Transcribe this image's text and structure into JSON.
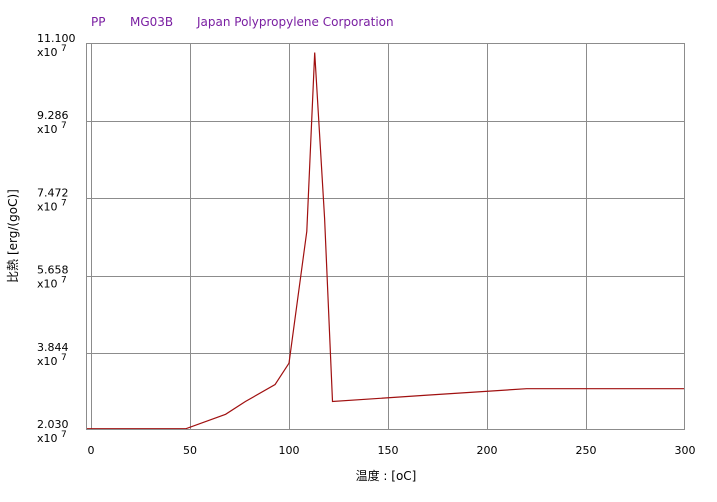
{
  "header": {
    "material": "PP",
    "grade": "MG03B",
    "company": "Japan Polypropylene Corporation"
  },
  "chart_data": {
    "type": "line",
    "xlabel": "温度 : [oC]",
    "ylabel": "比熱 [erg/(goC)]",
    "xlim": [
      -2,
      300
    ],
    "ylim": [
      2.03,
      11.1
    ],
    "x_ticks": [
      "0",
      "50",
      "100",
      "150",
      "200",
      "250",
      "300"
    ],
    "x_tick_values": [
      0,
      50,
      100,
      150,
      200,
      250,
      300
    ],
    "y_ticks": [
      "2.030",
      "3.844",
      "5.658",
      "7.472",
      "9.286",
      "11.100"
    ],
    "y_tick_values": [
      2.03,
      3.844,
      5.658,
      7.472,
      9.286,
      11.1
    ],
    "y_multiplier": "x10",
    "y_exponent": "7",
    "grid": true,
    "series": [
      {
        "color": "#a01010",
        "points": [
          [
            -2,
            2.06
          ],
          [
            48,
            2.06
          ],
          [
            68,
            2.4
          ],
          [
            78,
            2.7
          ],
          [
            93,
            3.1
          ],
          [
            100,
            3.6
          ],
          [
            109,
            6.7
          ],
          [
            113,
            10.9
          ],
          [
            118,
            7.0
          ],
          [
            122,
            2.7
          ],
          [
            170,
            2.85
          ],
          [
            220,
            3.0
          ],
          [
            300,
            3.0
          ]
        ]
      }
    ]
  }
}
